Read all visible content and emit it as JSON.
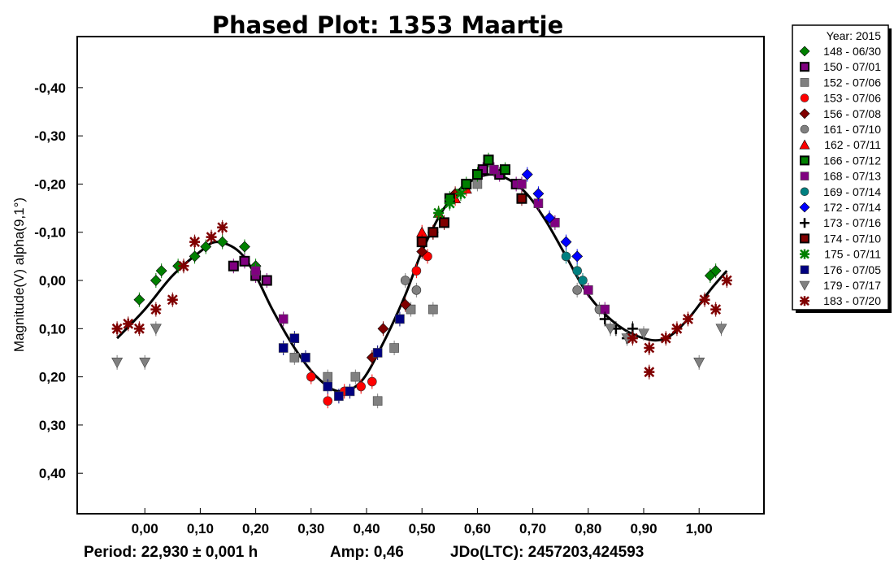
{
  "chart_data": {
    "type": "scatter",
    "title": "Phased Plot: 1353 Maartje",
    "xlabel": "",
    "ylabel": "Magnitude(V) alpha(9,1°)",
    "xlim": [
      -0.122,
      1.117
    ],
    "ylim": [
      -0.506,
      0.484
    ],
    "y_inverted": true,
    "x_ticks": [
      0.0,
      0.1,
      0.2,
      0.3,
      0.4,
      0.5,
      0.6,
      0.7,
      0.8,
      0.9,
      1.0
    ],
    "x_tick_labels": [
      "0,00",
      "0,10",
      "0,20",
      "0,30",
      "0,40",
      "0,50",
      "0,60",
      "0,70",
      "0,80",
      "0,90",
      "1,00"
    ],
    "y_ticks": [
      -0.4,
      -0.3,
      -0.2,
      -0.1,
      0.0,
      0.1,
      0.2,
      0.3,
      0.4
    ],
    "y_tick_labels": [
      "-0,40",
      "-0,30",
      "-0,20",
      "-0,10",
      "0,00",
      "0,10",
      "0,20",
      "0,30",
      "0,40"
    ],
    "grid": false,
    "legend_position": "right-outside",
    "legend_title": "Year: 2015",
    "footer": {
      "period": "Period: 22,930 ± 0,001 h",
      "amp": "Amp: 0,46",
      "jdo": "JDo(LTC): 2457203,424593"
    },
    "fit_curve": [
      [
        -0.05,
        0.12
      ],
      [
        0.0,
        0.06
      ],
      [
        0.05,
        -0.01
      ],
      [
        0.1,
        -0.06
      ],
      [
        0.13,
        -0.08
      ],
      [
        0.17,
        -0.06
      ],
      [
        0.2,
        -0.01
      ],
      [
        0.23,
        0.06
      ],
      [
        0.27,
        0.14
      ],
      [
        0.31,
        0.2
      ],
      [
        0.35,
        0.23
      ],
      [
        0.39,
        0.21
      ],
      [
        0.43,
        0.13
      ],
      [
        0.47,
        0.03
      ],
      [
        0.5,
        -0.06
      ],
      [
        0.54,
        -0.15
      ],
      [
        0.58,
        -0.2
      ],
      [
        0.63,
        -0.22
      ],
      [
        0.68,
        -0.19
      ],
      [
        0.72,
        -0.13
      ],
      [
        0.76,
        -0.05
      ],
      [
        0.8,
        0.03
      ],
      [
        0.85,
        0.09
      ],
      [
        0.9,
        0.12
      ],
      [
        0.94,
        0.12
      ],
      [
        0.98,
        0.08
      ],
      [
        1.02,
        0.02
      ],
      [
        1.05,
        -0.02
      ]
    ],
    "series": [
      {
        "name": "148 - 06/30",
        "marker": "diamond",
        "color": "#008000",
        "points": [
          [
            -0.01,
            0.04
          ],
          [
            0.02,
            0.0
          ],
          [
            0.03,
            -0.02
          ],
          [
            0.06,
            -0.03
          ],
          [
            0.09,
            -0.05
          ],
          [
            0.11,
            -0.07
          ],
          [
            0.14,
            -0.08
          ],
          [
            0.18,
            -0.07
          ],
          [
            0.2,
            -0.03
          ],
          [
            1.02,
            -0.01
          ],
          [
            1.03,
            -0.02
          ]
        ]
      },
      {
        "name": "150 - 07/01",
        "marker": "square-b",
        "color": "#800080",
        "points": [
          [
            0.16,
            -0.03
          ],
          [
            0.18,
            -0.04
          ],
          [
            0.2,
            -0.01
          ],
          [
            0.22,
            0.0
          ],
          [
            0.61,
            -0.23
          ],
          [
            0.64,
            -0.22
          ],
          [
            0.67,
            -0.2
          ]
        ]
      },
      {
        "name": "152 - 07/06",
        "marker": "square",
        "color": "#808080",
        "points": [
          [
            0.27,
            0.16
          ],
          [
            0.33,
            0.2
          ],
          [
            0.38,
            0.2
          ],
          [
            0.42,
            0.25
          ],
          [
            0.45,
            0.14
          ],
          [
            0.48,
            0.06
          ],
          [
            0.52,
            0.06
          ],
          [
            0.6,
            -0.2
          ]
        ]
      },
      {
        "name": "153 - 07/06",
        "marker": "circle",
        "color": "#ff0000",
        "points": [
          [
            0.3,
            0.2
          ],
          [
            0.33,
            0.25
          ],
          [
            0.36,
            0.23
          ],
          [
            0.39,
            0.22
          ],
          [
            0.41,
            0.21
          ],
          [
            0.49,
            -0.02
          ],
          [
            0.51,
            -0.05
          ]
        ]
      },
      {
        "name": "156 - 07/08",
        "marker": "diamond",
        "color": "#800000",
        "points": [
          [
            0.41,
            0.16
          ],
          [
            0.43,
            0.1
          ],
          [
            0.47,
            0.05
          ],
          [
            0.5,
            -0.06
          ],
          [
            0.52,
            -0.1
          ],
          [
            0.56,
            -0.18
          ]
        ]
      },
      {
        "name": "161 - 07/10",
        "marker": "circle",
        "color": "#808080",
        "points": [
          [
            0.47,
            0.0
          ],
          [
            0.49,
            0.02
          ],
          [
            0.78,
            0.02
          ],
          [
            0.82,
            0.06
          ]
        ]
      },
      {
        "name": "162 - 07/11",
        "marker": "triangle",
        "color": "#ff0000",
        "points": [
          [
            0.5,
            -0.1
          ],
          [
            0.53,
            -0.14
          ],
          [
            0.56,
            -0.17
          ],
          [
            0.58,
            -0.19
          ]
        ]
      },
      {
        "name": "166 - 07/12",
        "marker": "square-b",
        "color": "#008000",
        "points": [
          [
            0.55,
            -0.17
          ],
          [
            0.58,
            -0.2
          ],
          [
            0.6,
            -0.22
          ],
          [
            0.62,
            -0.25
          ],
          [
            0.65,
            -0.23
          ]
        ]
      },
      {
        "name": "168 - 07/13",
        "marker": "square",
        "color": "#800080",
        "points": [
          [
            0.2,
            -0.02
          ],
          [
            0.25,
            0.08
          ],
          [
            0.63,
            -0.23
          ],
          [
            0.68,
            -0.2
          ],
          [
            0.71,
            -0.16
          ],
          [
            0.74,
            -0.12
          ],
          [
            0.8,
            0.02
          ],
          [
            0.83,
            0.06
          ]
        ]
      },
      {
        "name": "169 - 07/14",
        "marker": "circle",
        "color": "#008080",
        "points": [
          [
            0.76,
            -0.05
          ],
          [
            0.78,
            -0.02
          ],
          [
            0.79,
            0.0
          ]
        ]
      },
      {
        "name": "172 - 07/14",
        "marker": "diamond",
        "color": "#0000ff",
        "points": [
          [
            0.69,
            -0.22
          ],
          [
            0.71,
            -0.18
          ],
          [
            0.73,
            -0.13
          ],
          [
            0.76,
            -0.08
          ],
          [
            0.78,
            -0.05
          ]
        ]
      },
      {
        "name": "173 - 07/16",
        "marker": "plus",
        "color": "#000000",
        "points": [
          [
            0.83,
            0.08
          ],
          [
            0.85,
            0.1
          ],
          [
            0.87,
            0.12
          ],
          [
            0.88,
            0.1
          ]
        ]
      },
      {
        "name": "174 - 07/10",
        "marker": "square-b",
        "color": "#800000",
        "points": [
          [
            0.5,
            -0.08
          ],
          [
            0.52,
            -0.1
          ],
          [
            0.54,
            -0.12
          ],
          [
            0.68,
            -0.17
          ]
        ]
      },
      {
        "name": "175 - 07/11",
        "marker": "asterisk",
        "color": "#008000",
        "points": [
          [
            0.53,
            -0.14
          ],
          [
            0.55,
            -0.16
          ],
          [
            0.57,
            -0.18
          ]
        ]
      },
      {
        "name": "176 - 07/05",
        "marker": "square",
        "color": "#000080",
        "points": [
          [
            0.25,
            0.14
          ],
          [
            0.27,
            0.12
          ],
          [
            0.29,
            0.16
          ],
          [
            0.33,
            0.22
          ],
          [
            0.35,
            0.24
          ],
          [
            0.37,
            0.23
          ],
          [
            0.42,
            0.15
          ],
          [
            0.46,
            0.08
          ]
        ]
      },
      {
        "name": "179 - 07/17",
        "marker": "tri-down",
        "color": "#808080",
        "points": [
          [
            -0.05,
            0.17
          ],
          [
            0.0,
            0.17
          ],
          [
            0.02,
            0.1
          ],
          [
            0.84,
            0.1
          ],
          [
            0.87,
            0.12
          ],
          [
            0.9,
            0.11
          ],
          [
            1.0,
            0.17
          ],
          [
            1.04,
            0.1
          ]
        ]
      },
      {
        "name": "183 - 07/20",
        "marker": "asterisk",
        "color": "#800000",
        "points": [
          [
            -0.05,
            0.1
          ],
          [
            -0.03,
            0.09
          ],
          [
            -0.01,
            0.1
          ],
          [
            0.02,
            0.06
          ],
          [
            0.05,
            0.04
          ],
          [
            0.07,
            -0.03
          ],
          [
            0.09,
            -0.08
          ],
          [
            0.12,
            -0.09
          ],
          [
            0.14,
            -0.11
          ],
          [
            0.88,
            0.12
          ],
          [
            0.91,
            0.14
          ],
          [
            0.91,
            0.19
          ],
          [
            0.94,
            0.12
          ],
          [
            0.96,
            0.1
          ],
          [
            0.98,
            0.08
          ],
          [
            1.01,
            0.04
          ],
          [
            1.03,
            0.06
          ],
          [
            1.05,
            0.0
          ]
        ]
      }
    ]
  }
}
